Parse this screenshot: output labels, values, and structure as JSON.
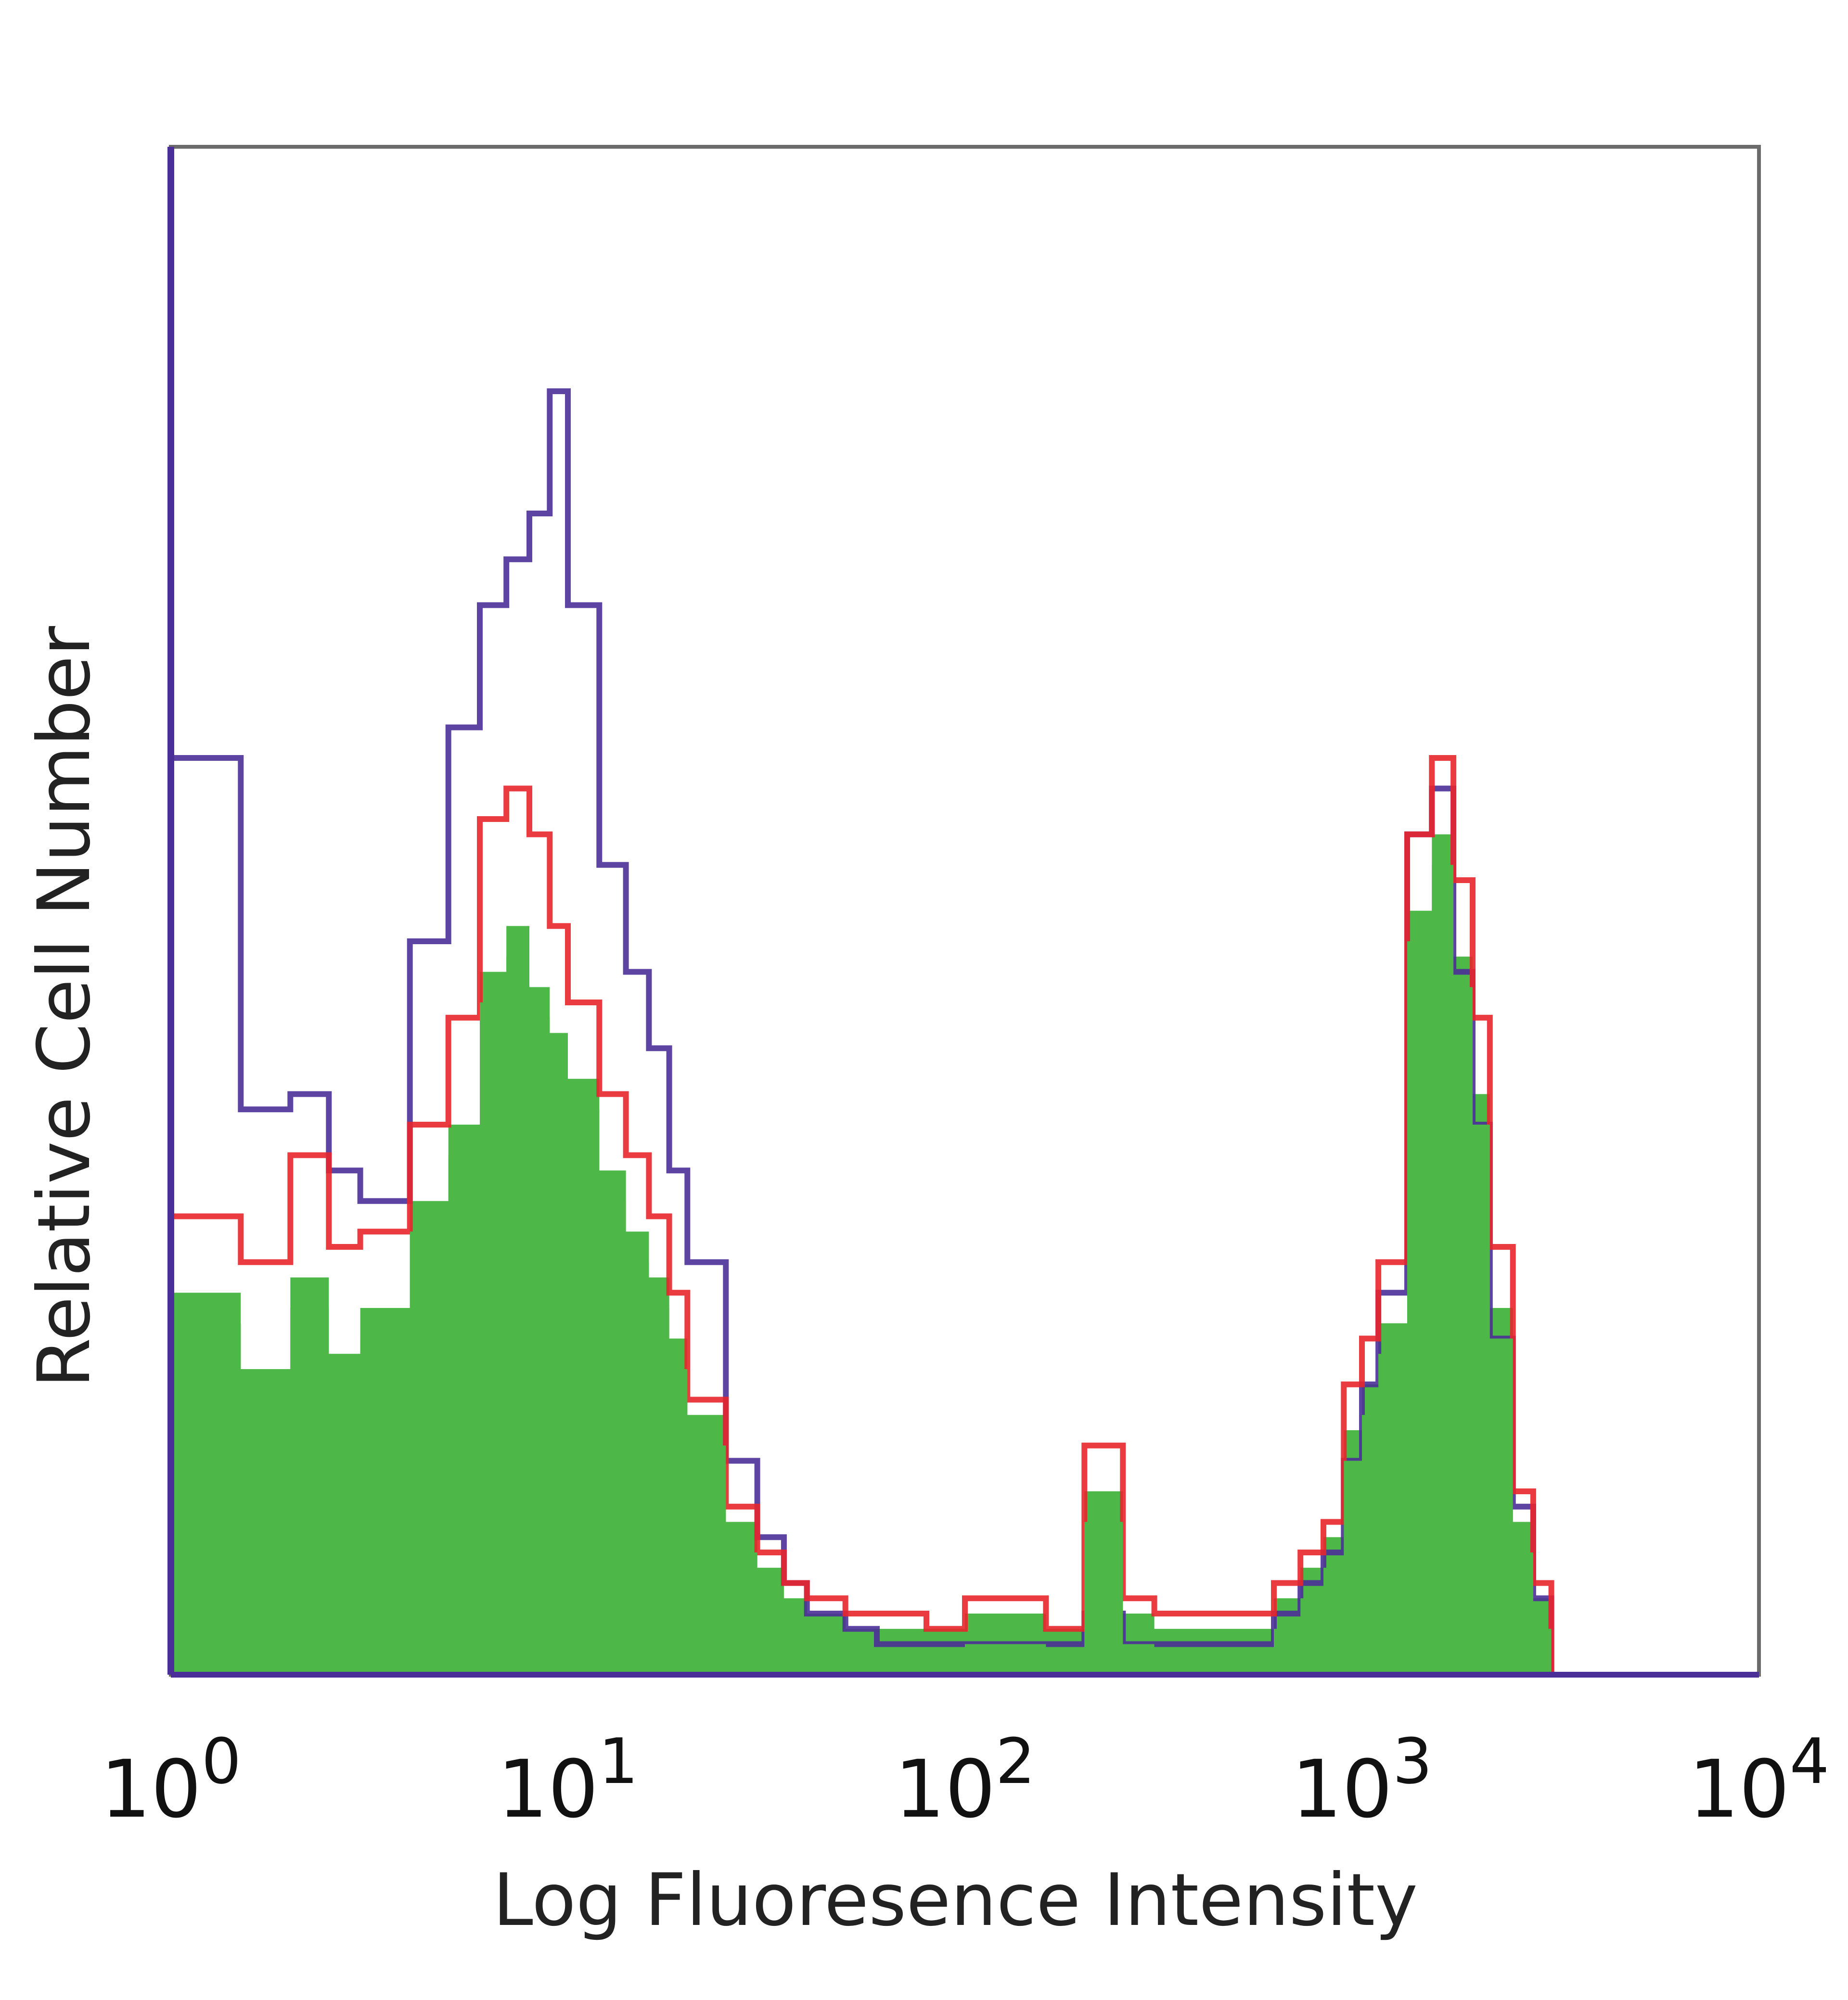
{
  "chart_data": {
    "type": "area",
    "title": "",
    "xlabel": "Log Fluoresence Intensity",
    "ylabel": "Relative Cell Number",
    "xscale": "log",
    "xlim": [
      1,
      10000
    ],
    "ylim": [
      0,
      100
    ],
    "x_ticks": [
      {
        "value": 1,
        "base": "10",
        "exp": "0"
      },
      {
        "value": 10,
        "base": "10",
        "exp": "1"
      },
      {
        "value": 100,
        "base": "10",
        "exp": "2"
      },
      {
        "value": 1000,
        "base": "10",
        "exp": "3"
      },
      {
        "value": 10000,
        "base": "10",
        "exp": "4"
      }
    ],
    "grid": false,
    "legend": "none",
    "x": [
      1.0,
      1.5,
      2.0,
      2.5,
      3.0,
      4.0,
      5.0,
      6.0,
      7.0,
      8.0,
      9.0,
      10,
      12,
      14,
      16,
      18,
      20,
      25,
      30,
      35,
      40,
      50,
      60,
      80,
      100,
      130,
      160,
      200,
      250,
      300,
      400,
      500,
      600,
      700,
      800,
      900,
      1000,
      1100,
      1300,
      1500,
      1700,
      1900,
      2100,
      2400,
      2700,
      3000,
      3500,
      4000,
      6000,
      10000
    ],
    "series": [
      {
        "color": "#4b2f98",
        "style": "line",
        "values": [
          60,
          37,
          38,
          33,
          31,
          48,
          62,
          70,
          73,
          76,
          84,
          70,
          53,
          46,
          41,
          33,
          27,
          14,
          9,
          6,
          4,
          3,
          2,
          2,
          2,
          2,
          2,
          4,
          2,
          2,
          2,
          2,
          4,
          6,
          8,
          14,
          19,
          25,
          55,
          58,
          46,
          36,
          22,
          11,
          5,
          0,
          0,
          0,
          0,
          0
        ]
      },
      {
        "color": "#e8262c",
        "style": "line",
        "values": [
          30,
          27,
          34,
          28,
          29,
          36,
          43,
          56,
          58,
          55,
          49,
          44,
          38,
          34,
          30,
          25,
          18,
          11,
          8,
          6,
          5,
          4,
          4,
          3,
          5,
          5,
          3,
          15,
          5,
          4,
          4,
          4,
          6,
          8,
          10,
          19,
          22,
          27,
          55,
          60,
          52,
          43,
          28,
          12,
          6,
          0,
          0,
          0,
          0,
          0
        ]
      },
      {
        "color": "#4db848",
        "style": "fill",
        "values": [
          25,
          20,
          26,
          21,
          24,
          31,
          36,
          46,
          49,
          45,
          42,
          39,
          33,
          29,
          26,
          22,
          17,
          10,
          7,
          5,
          4,
          3,
          3,
          3,
          4,
          4,
          3,
          12,
          4,
          3,
          3,
          3,
          5,
          7,
          9,
          16,
          19,
          23,
          50,
          55,
          47,
          38,
          24,
          10,
          5,
          0,
          0,
          0,
          0,
          0
        ]
      }
    ]
  }
}
